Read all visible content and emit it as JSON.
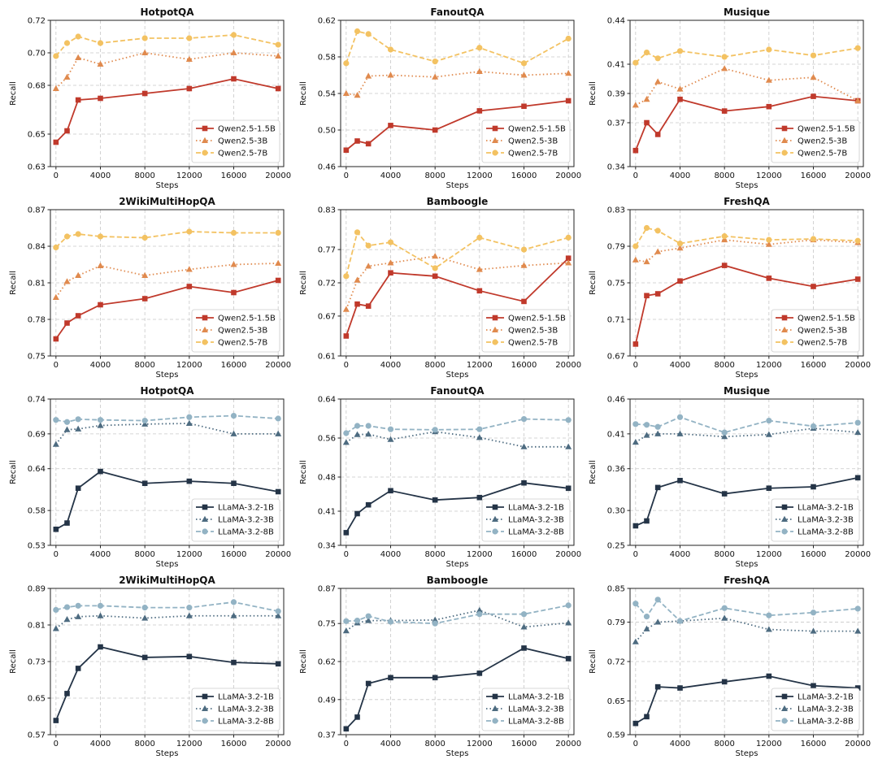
{
  "figure": {
    "xlabel": "Steps",
    "ylabel": "Recall",
    "xticks": [
      0,
      4000,
      8000,
      12000,
      16000,
      20000
    ],
    "x": [
      0,
      1000,
      2000,
      4000,
      8000,
      12000,
      16000,
      20000
    ]
  },
  "series_styles": {
    "Qwen2.5-1.5B": {
      "color": "#c0392b",
      "dash": "solid",
      "marker": "square"
    },
    "Qwen2.5-3B": {
      "color": "#e08a4e",
      "dash": "dotted",
      "marker": "triangle"
    },
    "Qwen2.5-7B": {
      "color": "#f3c262",
      "dash": "dashed",
      "marker": "circle"
    },
    "LLaMA-3.2-1B": {
      "color": "#243447",
      "dash": "solid",
      "marker": "square"
    },
    "LLaMA-3.2-3B": {
      "color": "#4d6b80",
      "dash": "dotted",
      "marker": "triangle"
    },
    "LLaMA-3.2-8B": {
      "color": "#93b3c4",
      "dash": "dashed",
      "marker": "circle"
    }
  },
  "chart_data": [
    {
      "type": "line",
      "title": "HotpotQA",
      "xlabel": "Steps",
      "ylabel": "Recall",
      "yticks": [
        "0.63",
        "0.65",
        "0.68",
        "0.70",
        "0.72"
      ],
      "ylim": [
        0.63,
        0.72
      ],
      "legend": "lower-right",
      "series": [
        {
          "name": "Qwen2.5-1.5B",
          "values": [
            0.645,
            0.652,
            0.671,
            0.672,
            0.675,
            0.678,
            0.684,
            0.678
          ]
        },
        {
          "name": "Qwen2.5-3B",
          "values": [
            0.678,
            0.685,
            0.697,
            0.693,
            0.7,
            0.696,
            0.7,
            0.698
          ]
        },
        {
          "name": "Qwen2.5-7B",
          "values": [
            0.698,
            0.706,
            0.71,
            0.706,
            0.709,
            0.709,
            0.711,
            0.705
          ]
        }
      ]
    },
    {
      "type": "line",
      "title": "FanoutQA",
      "xlabel": "Steps",
      "ylabel": "Recall",
      "yticks": [
        "0.46",
        "0.50",
        "0.54",
        "0.58",
        "0.62"
      ],
      "ylim": [
        0.46,
        0.62
      ],
      "legend": "lower-right",
      "series": [
        {
          "name": "Qwen2.5-1.5B",
          "values": [
            0.478,
            0.488,
            0.485,
            0.505,
            0.5,
            0.521,
            0.526,
            0.532
          ]
        },
        {
          "name": "Qwen2.5-3B",
          "values": [
            0.54,
            0.538,
            0.559,
            0.56,
            0.558,
            0.564,
            0.56,
            0.562
          ]
        },
        {
          "name": "Qwen2.5-7B",
          "values": [
            0.573,
            0.608,
            0.605,
            0.588,
            0.575,
            0.59,
            0.573,
            0.6
          ]
        }
      ]
    },
    {
      "type": "line",
      "title": "Musique",
      "xlabel": "Steps",
      "ylabel": "Recall",
      "yticks": [
        "0.34",
        "0.37",
        "0.39",
        "0.41",
        "0.44"
      ],
      "ylim": [
        0.34,
        0.44
      ],
      "legend": "lower-right",
      "series": [
        {
          "name": "Qwen2.5-1.5B",
          "values": [
            0.351,
            0.37,
            0.362,
            0.386,
            0.378,
            0.381,
            0.388,
            0.385
          ]
        },
        {
          "name": "Qwen2.5-3B",
          "values": [
            0.382,
            0.386,
            0.398,
            0.393,
            0.407,
            0.399,
            0.401,
            0.385
          ]
        },
        {
          "name": "Qwen2.5-7B",
          "values": [
            0.411,
            0.418,
            0.414,
            0.419,
            0.415,
            0.42,
            0.416,
            0.421
          ]
        }
      ]
    },
    {
      "type": "line",
      "title": "2WikiMultiHopQA",
      "xlabel": "Steps",
      "ylabel": "Recall",
      "yticks": [
        "0.75",
        "0.78",
        "0.81",
        "0.84",
        "0.87"
      ],
      "ylim": [
        0.75,
        0.87
      ],
      "legend": "lower-right",
      "series": [
        {
          "name": "Qwen2.5-1.5B",
          "values": [
            0.764,
            0.777,
            0.783,
            0.792,
            0.797,
            0.807,
            0.802,
            0.812
          ]
        },
        {
          "name": "Qwen2.5-3B",
          "values": [
            0.798,
            0.811,
            0.816,
            0.824,
            0.816,
            0.821,
            0.825,
            0.826
          ]
        },
        {
          "name": "Qwen2.5-7B",
          "values": [
            0.839,
            0.848,
            0.85,
            0.848,
            0.847,
            0.852,
            0.851,
            0.851
          ]
        }
      ]
    },
    {
      "type": "line",
      "title": "Bamboogle",
      "xlabel": "Steps",
      "ylabel": "Recall",
      "yticks": [
        "0.61",
        "0.67",
        "0.72",
        "0.77",
        "0.83"
      ],
      "ylim": [
        0.61,
        0.83
      ],
      "legend": "lower-right",
      "series": [
        {
          "name": "Qwen2.5-1.5B",
          "values": [
            0.64,
            0.688,
            0.685,
            0.735,
            0.73,
            0.708,
            0.692,
            0.757
          ]
        },
        {
          "name": "Qwen2.5-3B",
          "values": [
            0.68,
            0.724,
            0.745,
            0.75,
            0.76,
            0.74,
            0.746,
            0.75
          ]
        },
        {
          "name": "Qwen2.5-7B",
          "values": [
            0.73,
            0.796,
            0.776,
            0.781,
            0.742,
            0.788,
            0.77,
            0.788
          ]
        }
      ]
    },
    {
      "type": "line",
      "title": "FreshQA",
      "xlabel": "Steps",
      "ylabel": "Recall",
      "yticks": [
        "0.67",
        "0.71",
        "0.75",
        "0.79",
        "0.83"
      ],
      "ylim": [
        0.67,
        0.83
      ],
      "legend": "lower-right",
      "series": [
        {
          "name": "Qwen2.5-1.5B",
          "values": [
            0.683,
            0.736,
            0.738,
            0.752,
            0.769,
            0.755,
            0.746,
            0.754
          ]
        },
        {
          "name": "Qwen2.5-3B",
          "values": [
            0.775,
            0.773,
            0.784,
            0.788,
            0.797,
            0.792,
            0.797,
            0.794
          ]
        },
        {
          "name": "Qwen2.5-7B",
          "values": [
            0.79,
            0.81,
            0.807,
            0.793,
            0.801,
            0.797,
            0.798,
            0.796
          ]
        }
      ]
    },
    {
      "type": "line",
      "title": "HotpotQA",
      "xlabel": "Steps",
      "ylabel": "Recall",
      "yticks": [
        "0.53",
        "0.58",
        "0.64",
        "0.69",
        "0.74"
      ],
      "ylim": [
        0.53,
        0.74
      ],
      "legend": "lower-right",
      "series": [
        {
          "name": "LLaMA-3.2-1B",
          "values": [
            0.553,
            0.562,
            0.612,
            0.636,
            0.619,
            0.622,
            0.619,
            0.607
          ]
        },
        {
          "name": "LLaMA-3.2-3B",
          "values": [
            0.675,
            0.696,
            0.697,
            0.702,
            0.704,
            0.705,
            0.69,
            0.69
          ]
        },
        {
          "name": "LLaMA-3.2-8B",
          "values": [
            0.71,
            0.707,
            0.711,
            0.71,
            0.709,
            0.714,
            0.716,
            0.712
          ]
        }
      ]
    },
    {
      "type": "line",
      "title": "FanoutQA",
      "xlabel": "Steps",
      "ylabel": "Recall",
      "yticks": [
        "0.34",
        "0.41",
        "0.48",
        "0.56",
        "0.64"
      ],
      "ylim": [
        0.34,
        0.64
      ],
      "legend": "lower-right",
      "series": [
        {
          "name": "LLaMA-3.2-1B",
          "values": [
            0.366,
            0.405,
            0.423,
            0.452,
            0.433,
            0.438,
            0.468,
            0.457
          ]
        },
        {
          "name": "LLaMA-3.2-3B",
          "values": [
            0.551,
            0.567,
            0.568,
            0.557,
            0.573,
            0.561,
            0.542,
            0.542
          ]
        },
        {
          "name": "LLaMA-3.2-8B",
          "values": [
            0.57,
            0.585,
            0.585,
            0.578,
            0.577,
            0.578,
            0.599,
            0.597
          ]
        }
      ]
    },
    {
      "type": "line",
      "title": "Musique",
      "xlabel": "Steps",
      "ylabel": "Recall",
      "yticks": [
        "0.25",
        "0.30",
        "0.36",
        "0.41",
        "0.46"
      ],
      "ylim": [
        0.25,
        0.46
      ],
      "legend": "lower-right",
      "series": [
        {
          "name": "LLaMA-3.2-1B",
          "values": [
            0.278,
            0.285,
            0.333,
            0.343,
            0.324,
            0.332,
            0.334,
            0.347
          ]
        },
        {
          "name": "LLaMA-3.2-3B",
          "values": [
            0.398,
            0.408,
            0.41,
            0.41,
            0.406,
            0.409,
            0.418,
            0.412
          ]
        },
        {
          "name": "LLaMA-3.2-8B",
          "values": [
            0.424,
            0.423,
            0.42,
            0.434,
            0.412,
            0.429,
            0.421,
            0.426
          ]
        }
      ]
    },
    {
      "type": "line",
      "title": "2WikiMultiHopQA",
      "xlabel": "Steps",
      "ylabel": "Recall",
      "yticks": [
        "0.57",
        "0.65",
        "0.73",
        "0.81",
        "0.89"
      ],
      "ylim": [
        0.57,
        0.89
      ],
      "legend": "lower-right",
      "series": [
        {
          "name": "LLaMA-3.2-1B",
          "values": [
            0.601,
            0.66,
            0.715,
            0.762,
            0.739,
            0.741,
            0.728,
            0.725
          ]
        },
        {
          "name": "LLaMA-3.2-3B",
          "values": [
            0.802,
            0.822,
            0.828,
            0.83,
            0.825,
            0.83,
            0.83,
            0.83
          ]
        },
        {
          "name": "LLaMA-3.2-8B",
          "values": [
            0.843,
            0.849,
            0.852,
            0.852,
            0.848,
            0.848,
            0.86,
            0.84
          ]
        }
      ]
    },
    {
      "type": "line",
      "title": "Bamboogle",
      "xlabel": "Steps",
      "ylabel": "Recall",
      "yticks": [
        "0.37",
        "0.49",
        "0.62",
        "0.75",
        "0.87"
      ],
      "ylim": [
        0.37,
        0.87
      ],
      "legend": "lower-right",
      "series": [
        {
          "name": "LLaMA-3.2-1B",
          "values": [
            0.39,
            0.43,
            0.545,
            0.565,
            0.565,
            0.58,
            0.666,
            0.63
          ]
        },
        {
          "name": "LLaMA-3.2-3B",
          "values": [
            0.725,
            0.752,
            0.76,
            0.76,
            0.762,
            0.795,
            0.738,
            0.752
          ]
        },
        {
          "name": "LLaMA-3.2-8B",
          "values": [
            0.758,
            0.76,
            0.775,
            0.756,
            0.75,
            0.782,
            0.782,
            0.812
          ]
        }
      ]
    },
    {
      "type": "line",
      "title": "FreshQA",
      "xlabel": "Steps",
      "ylabel": "Recall",
      "yticks": [
        "0.59",
        "0.65",
        "0.72",
        "0.79",
        "0.85"
      ],
      "ylim": [
        0.59,
        0.85
      ],
      "legend": "lower-right",
      "series": [
        {
          "name": "LLaMA-3.2-1B",
          "values": [
            0.61,
            0.622,
            0.675,
            0.673,
            0.684,
            0.694,
            0.677,
            0.673
          ]
        },
        {
          "name": "LLaMA-3.2-3B",
          "values": [
            0.755,
            0.778,
            0.79,
            0.792,
            0.797,
            0.777,
            0.774,
            0.774
          ]
        },
        {
          "name": "LLaMA-3.2-8B",
          "values": [
            0.823,
            0.8,
            0.83,
            0.792,
            0.815,
            0.802,
            0.807,
            0.814
          ]
        }
      ]
    }
  ]
}
